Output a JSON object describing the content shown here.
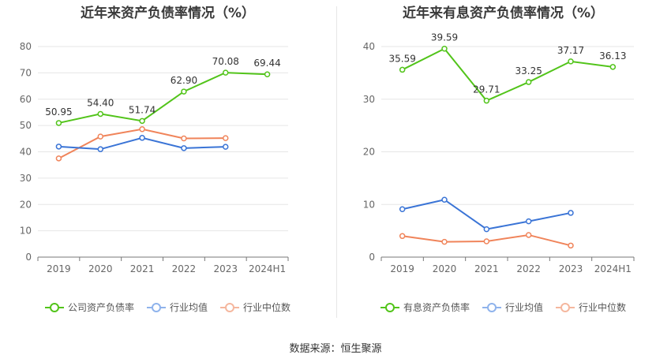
{
  "chart_data": [
    {
      "type": "line",
      "title": "近年来资产负债率情况（%）",
      "categories": [
        "2019",
        "2020",
        "2021",
        "2022",
        "2023",
        "2024H1"
      ],
      "ylim": [
        0,
        80
      ],
      "yticks": [
        "0",
        "10",
        "20",
        "30",
        "40",
        "50",
        "60",
        "70",
        "80"
      ],
      "grid": true,
      "legend_position": "bottom",
      "series": [
        {
          "name": "公司资产负债率",
          "color": "#52c41a",
          "values": [
            50.95,
            54.4,
            51.74,
            62.9,
            70.08,
            69.44
          ],
          "labels": [
            "50.95",
            "54.40",
            "51.74",
            "62.90",
            "70.08",
            "69.44"
          ]
        },
        {
          "name": "行业均值",
          "color": "#3a74d6",
          "values": [
            42.0,
            41.0,
            45.3,
            41.4,
            41.9,
            null
          ]
        },
        {
          "name": "行业中位数",
          "color": "#f0845a",
          "values": [
            37.5,
            45.8,
            48.6,
            45.1,
            45.2,
            null
          ]
        }
      ]
    },
    {
      "type": "line",
      "title": "近年来有息资产负债率情况（%）",
      "categories": [
        "2019",
        "2020",
        "2021",
        "2022",
        "2023",
        "2024H1"
      ],
      "ylim": [
        0,
        40
      ],
      "yticks": [
        "0",
        "10",
        "20",
        "30",
        "40"
      ],
      "grid": true,
      "legend_position": "bottom",
      "series": [
        {
          "name": "有息资产负债率",
          "color": "#52c41a",
          "values": [
            35.59,
            39.59,
            29.71,
            33.25,
            37.17,
            36.13
          ],
          "labels": [
            "35.59",
            "39.59",
            "29.71",
            "33.25",
            "37.17",
            "36.13"
          ]
        },
        {
          "name": "行业均值",
          "color": "#3a74d6",
          "values": [
            9.1,
            10.9,
            5.3,
            6.8,
            8.4,
            null
          ]
        },
        {
          "name": "行业中位数",
          "color": "#f0845a",
          "values": [
            4.0,
            2.9,
            3.0,
            4.2,
            2.2,
            null
          ]
        }
      ]
    }
  ],
  "legend": {
    "left": [
      "公司资产负债率",
      "行业均值",
      "行业中位数"
    ],
    "right": [
      "有息资产负债率",
      "行业均值",
      "行业中位数"
    ]
  },
  "colors": {
    "primary": "#52c41a",
    "mean": "#3a74d6",
    "median": "#f0845a",
    "mean_legend": "#8fb3ec",
    "median_legend": "#f5b79e"
  },
  "source": "数据来源：恒生聚源"
}
